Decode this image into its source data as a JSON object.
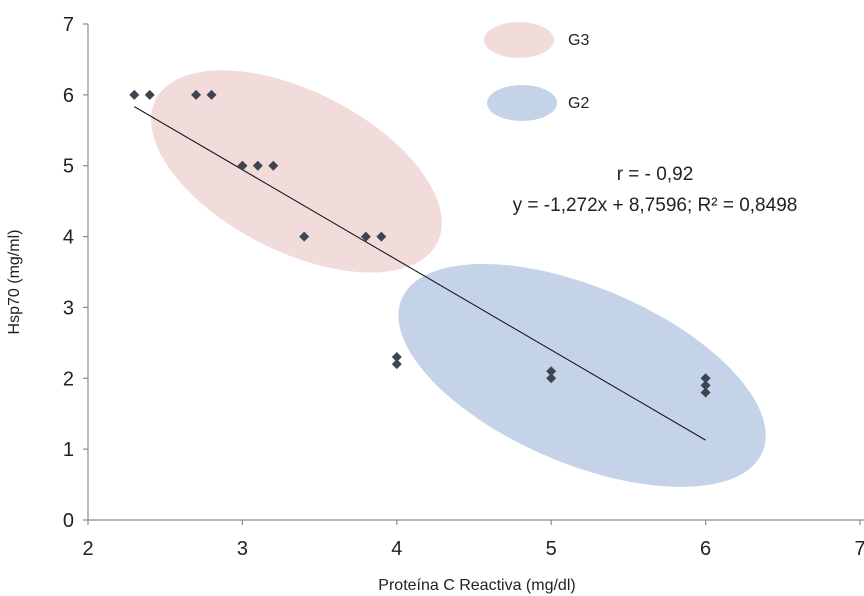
{
  "chart_data": {
    "type": "scatter",
    "title": "",
    "xlabel": "Proteína C Reactiva  (mg/dl)",
    "ylabel": "Hsp70  (mg/ml)",
    "xlim": [
      2,
      7
    ],
    "ylim": [
      0,
      7
    ],
    "xticks": [
      "2",
      "3",
      "4",
      "5",
      "6",
      "7"
    ],
    "yticks": [
      "0",
      "1",
      "2",
      "3",
      "4",
      "5",
      "6",
      "7"
    ],
    "grid": false,
    "legend_position": "top-right",
    "legend": [
      {
        "label": "G3",
        "color": "#f2dcdb"
      },
      {
        "label": "G2",
        "color": "#c5d3e8"
      }
    ],
    "marker_color": "#3d4452",
    "points": [
      {
        "x": 2.3,
        "y": 6.0
      },
      {
        "x": 2.4,
        "y": 6.0
      },
      {
        "x": 2.7,
        "y": 6.0
      },
      {
        "x": 2.8,
        "y": 6.0
      },
      {
        "x": 3.0,
        "y": 5.0
      },
      {
        "x": 3.1,
        "y": 5.0
      },
      {
        "x": 3.2,
        "y": 5.0
      },
      {
        "x": 3.4,
        "y": 4.0
      },
      {
        "x": 3.8,
        "y": 4.0
      },
      {
        "x": 3.9,
        "y": 4.0
      },
      {
        "x": 4.0,
        "y": 2.3
      },
      {
        "x": 4.0,
        "y": 2.2
      },
      {
        "x": 5.0,
        "y": 2.1
      },
      {
        "x": 5.0,
        "y": 2.0
      },
      {
        "x": 6.0,
        "y": 2.0
      },
      {
        "x": 6.0,
        "y": 1.9
      },
      {
        "x": 6.0,
        "y": 1.8
      }
    ],
    "trendline": {
      "slope": -1.272,
      "intercept": 8.7596,
      "x_range": [
        2.3,
        6.0
      ]
    },
    "group_ellipses": [
      {
        "group": "G3",
        "center": [
          3.35,
          4.92
        ],
        "color": "#f2dcdb"
      },
      {
        "group": "G2",
        "center": [
          5.2,
          2.04
        ],
        "color": "#c5d3e8"
      }
    ],
    "annotations": [
      "r = - 0,92",
      "y = -1,272x + 8,7596; R² = 0,8498"
    ]
  }
}
